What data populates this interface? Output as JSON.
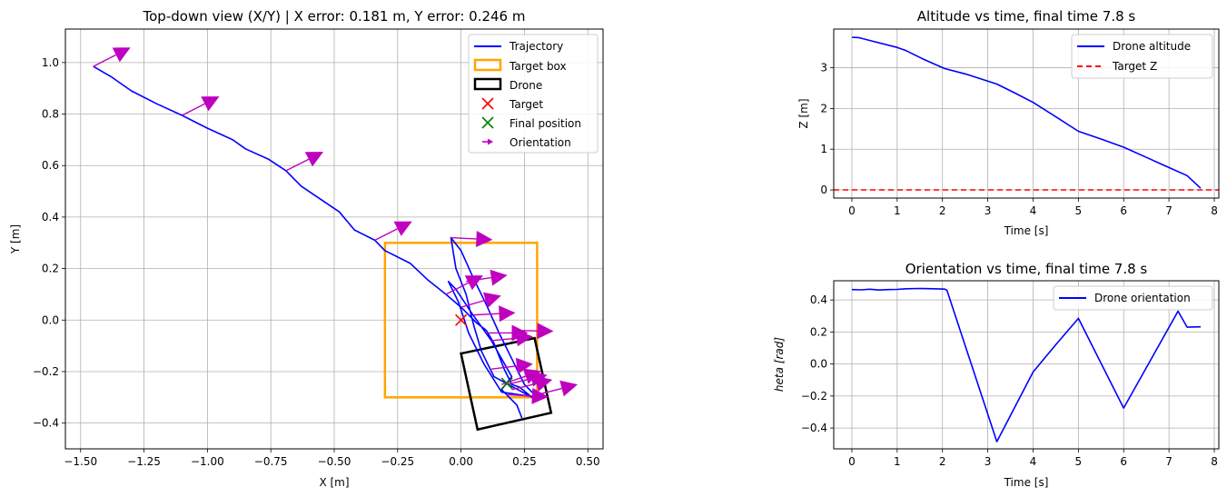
{
  "chart_data": [
    {
      "type": "line",
      "title": "Top-down view (X/Y) | X error: 0.181 m, Y error: 0.246 m",
      "xlabel": "X [m]",
      "ylabel": "Y [m]",
      "xlim": [
        -1.56,
        0.56
      ],
      "ylim": [
        -0.5,
        1.13
      ],
      "xticks": [
        -1.5,
        -1.25,
        -1.0,
        -0.75,
        -0.5,
        -0.25,
        0.0,
        0.25,
        0.5
      ],
      "xtick_labels": [
        "−1.50",
        "−1.25",
        "−1.00",
        "−0.75",
        "−0.50",
        "−0.25",
        "0.00",
        "0.25",
        "0.50"
      ],
      "yticks": [
        -0.4,
        -0.2,
        0.0,
        0.2,
        0.4,
        0.6,
        0.8,
        1.0
      ],
      "ytick_labels": [
        "−0.4",
        "−0.2",
        "0.0",
        "0.2",
        "0.4",
        "0.6",
        "0.8",
        "1.0"
      ],
      "grid": true,
      "legend_position": "upper right",
      "legend": [
        "Trajectory",
        "Target box",
        "Drone",
        "Target",
        "Final position",
        "Orientation"
      ],
      "series": [
        {
          "name": "Trajectory",
          "color": "#0000ff",
          "points": [
            [
              -1.45,
              0.985
            ],
            [
              -1.38,
              0.945
            ],
            [
              -1.3,
              0.89
            ],
            [
              -1.2,
              0.84
            ],
            [
              -1.1,
              0.795
            ],
            [
              -1.0,
              0.745
            ],
            [
              -0.9,
              0.7
            ],
            [
              -0.85,
              0.665
            ],
            [
              -0.76,
              0.625
            ],
            [
              -0.69,
              0.58
            ],
            [
              -0.63,
              0.52
            ],
            [
              -0.48,
              0.42
            ],
            [
              -0.42,
              0.35
            ],
            [
              -0.34,
              0.31
            ],
            [
              -0.3,
              0.27
            ],
            [
              -0.2,
              0.22
            ],
            [
              -0.13,
              0.155
            ],
            [
              -0.06,
              0.1
            ],
            [
              0.0,
              0.05
            ],
            [
              0.06,
              -0.01
            ],
            [
              0.1,
              -0.04
            ],
            [
              0.13,
              -0.09
            ],
            [
              0.17,
              -0.19
            ],
            [
              0.2,
              -0.25
            ],
            [
              0.23,
              -0.26
            ],
            [
              0.28,
              -0.3
            ],
            [
              0.13,
              -0.22
            ],
            [
              0.08,
              -0.12
            ],
            [
              0.05,
              -0.02
            ],
            [
              0.02,
              0.1
            ],
            [
              -0.02,
              0.2
            ],
            [
              -0.04,
              0.32
            ],
            [
              0.0,
              0.27
            ],
            [
              0.05,
              0.16
            ],
            [
              0.1,
              0.06
            ],
            [
              0.15,
              -0.05
            ],
            [
              0.2,
              -0.15
            ],
            [
              0.25,
              -0.25
            ],
            [
              0.3,
              -0.3
            ],
            [
              0.16,
              -0.28
            ],
            [
              0.09,
              -0.17
            ],
            [
              0.03,
              -0.05
            ],
            [
              -0.01,
              0.07
            ],
            [
              -0.05,
              0.15
            ],
            [
              -0.02,
              0.12
            ],
            [
              0.04,
              0.03
            ],
            [
              0.12,
              -0.08
            ],
            [
              0.2,
              -0.22
            ],
            [
              0.16,
              -0.27
            ],
            [
              0.22,
              -0.33
            ],
            [
              0.24,
              -0.38
            ]
          ]
        }
      ],
      "target_box": {
        "name": "Target box",
        "color": "#ffa500",
        "x": [
          -0.3,
          0.3
        ],
        "y": [
          -0.3,
          0.3
        ]
      },
      "drone": {
        "name": "Drone",
        "color": "#000000",
        "corners": [
          [
            0.0,
            -0.13
          ],
          [
            0.29,
            -0.07
          ],
          [
            0.355,
            -0.36
          ],
          [
            0.065,
            -0.425
          ]
        ]
      },
      "target": {
        "name": "Target",
        "color": "#ff0000",
        "x": 0.0,
        "y": 0.0
      },
      "final_position": {
        "name": "Final position",
        "color": "#008000",
        "x": 0.181,
        "y": -0.246
      },
      "orientation": {
        "name": "Orientation",
        "color": "#bf00bf",
        "arrows": [
          [
            -1.45,
            0.985,
            0.47
          ],
          [
            -1.1,
            0.795,
            0.47
          ],
          [
            -0.69,
            0.58,
            0.47
          ],
          [
            -0.34,
            0.31,
            0.47
          ],
          [
            -0.04,
            0.32,
            -0.05
          ],
          [
            -0.06,
            0.1,
            0.47
          ],
          [
            0.0,
            0.05,
            0.28
          ],
          [
            0.02,
            0.15,
            0.15
          ],
          [
            0.05,
            0.02,
            0.05
          ],
          [
            0.1,
            -0.05,
            0.0
          ],
          [
            0.12,
            -0.08,
            0.1
          ],
          [
            0.16,
            -0.25,
            0.33
          ],
          [
            0.18,
            -0.25,
            0.23
          ],
          [
            0.2,
            -0.27,
            0.24
          ],
          [
            0.12,
            -0.19,
            0.12
          ],
          [
            0.18,
            -0.29,
            -0.05
          ],
          [
            0.2,
            -0.04,
            -0.02
          ],
          [
            0.3,
            -0.29,
            0.25
          ]
        ]
      }
    },
    {
      "type": "line",
      "title": "Altitude vs time, final time 7.8 s",
      "xlabel": "Time [s]",
      "ylabel": "Z [m]",
      "xlim": [
        -0.4,
        8.1
      ],
      "ylim": [
        -0.2,
        3.95
      ],
      "xticks": [
        0,
        1,
        2,
        3,
        4,
        5,
        6,
        7,
        8
      ],
      "xtick_labels": [
        "0",
        "1",
        "2",
        "3",
        "4",
        "5",
        "6",
        "7",
        "8"
      ],
      "yticks": [
        0,
        1,
        2,
        3
      ],
      "ytick_labels": [
        "0",
        "1",
        "2",
        "3"
      ],
      "grid": true,
      "legend_position": "upper right",
      "series": [
        {
          "name": "Drone altitude",
          "color": "#0000ff",
          "dash": "solid",
          "points": [
            [
              0,
              3.75
            ],
            [
              0.15,
              3.74
            ],
            [
              0.5,
              3.64
            ],
            [
              1.0,
              3.5
            ],
            [
              1.2,
              3.42
            ],
            [
              1.6,
              3.2
            ],
            [
              2.05,
              2.98
            ],
            [
              2.5,
              2.85
            ],
            [
              3.2,
              2.6
            ],
            [
              3.6,
              2.38
            ],
            [
              4.0,
              2.15
            ],
            [
              4.5,
              1.8
            ],
            [
              5.0,
              1.44
            ],
            [
              5.5,
              1.25
            ],
            [
              6.0,
              1.05
            ],
            [
              6.5,
              0.8
            ],
            [
              7.0,
              0.55
            ],
            [
              7.4,
              0.35
            ],
            [
              7.7,
              0.04
            ]
          ]
        },
        {
          "name": "Target Z",
          "color": "#ff0000",
          "dash": "dashed",
          "points": [
            [
              -0.4,
              0.0
            ],
            [
              8.1,
              0.0
            ]
          ]
        }
      ]
    },
    {
      "type": "line",
      "title": "Orientation vs time, final time 7.8 s",
      "xlabel": "Time [s]",
      "ylabel": "$\\theta$ [rad]",
      "ylabel_display": "heta [rad]",
      "xlim": [
        -0.4,
        8.1
      ],
      "ylim": [
        -0.53,
        0.52
      ],
      "xticks": [
        0,
        1,
        2,
        3,
        4,
        5,
        6,
        7,
        8
      ],
      "xtick_labels": [
        "0",
        "1",
        "2",
        "3",
        "4",
        "5",
        "6",
        "7",
        "8"
      ],
      "yticks": [
        -0.4,
        -0.2,
        0.0,
        0.2,
        0.4
      ],
      "ytick_labels": [
        "−0.4",
        "−0.2",
        "0.0",
        "0.2",
        "0.4"
      ],
      "grid": true,
      "legend_position": "upper right",
      "series": [
        {
          "name": "Drone orientation",
          "color": "#0000ff",
          "dash": "solid",
          "points": [
            [
              0,
              0.465
            ],
            [
              0.2,
              0.463
            ],
            [
              0.4,
              0.467
            ],
            [
              0.6,
              0.462
            ],
            [
              0.8,
              0.465
            ],
            [
              1.0,
              0.466
            ],
            [
              1.2,
              0.47
            ],
            [
              1.5,
              0.472
            ],
            [
              1.8,
              0.47
            ],
            [
              2.05,
              0.468
            ],
            [
              2.1,
              0.46
            ],
            [
              3.2,
              -0.485
            ],
            [
              4.0,
              -0.05
            ],
            [
              4.5,
              0.12
            ],
            [
              5.0,
              0.285
            ],
            [
              6.0,
              -0.275
            ],
            [
              7.2,
              0.33
            ],
            [
              7.4,
              0.23
            ],
            [
              7.7,
              0.232
            ]
          ]
        }
      ]
    }
  ]
}
